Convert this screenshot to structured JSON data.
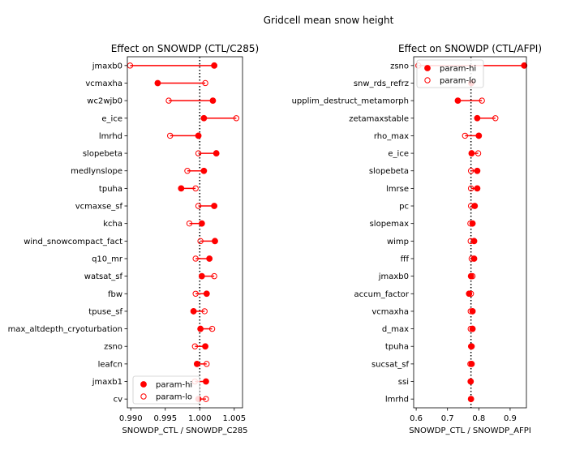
{
  "figure_title": "Gridcell mean snow height",
  "colors": {
    "marker": "#ff0000",
    "line": "#ff0000",
    "reference": "#000000",
    "axes": "#000000"
  },
  "chart_data": [
    {
      "type": "scatter",
      "title": "Effect on SNOWDP (CTL/C285)",
      "xlabel": "SNOWDP_CTL / SNOWDP_C285",
      "ylabel": "",
      "xlim": [
        0.9895,
        1.0062
      ],
      "xticks": [
        0.99,
        0.995,
        1.0,
        1.005
      ],
      "xtick_labels": [
        "0.990",
        "0.995",
        "1.000",
        "1.005"
      ],
      "reference_x": 1.0,
      "grid": false,
      "legend_position": "bottom-left",
      "legend": [
        {
          "label": "param-hi",
          "marker": "filled-circle"
        },
        {
          "label": "param-lo",
          "marker": "open-circle"
        }
      ],
      "categories": [
        "jmaxb0",
        "vcmaxha",
        "wc2wjb0",
        "e_ice",
        "lmrhd",
        "slopebeta",
        "medlynslope",
        "tpuha",
        "vcmaxse_sf",
        "kcha",
        "wind_snowcompact_fact",
        "q10_mr",
        "watsat_sf",
        "fbw",
        "tpuse_sf",
        "max_altdepth_cryoturbation",
        "zsno",
        "leafcn",
        "jmaxb1",
        "cv"
      ],
      "series": [
        {
          "name": "param-hi",
          "values": [
            1.0021,
            0.9939,
            1.0019,
            1.0006,
            0.9998,
            1.0024,
            1.0006,
            0.9973,
            1.0021,
            1.0003,
            1.0022,
            1.0014,
            1.0003,
            1.001,
            0.9991,
            1.0001,
            1.0008,
            0.9996,
            1.0009,
            0.9998
          ]
        },
        {
          "name": "param-lo",
          "values": [
            0.9899,
            1.0008,
            0.9955,
            1.0053,
            0.9957,
            0.9998,
            0.9982,
            0.9994,
            0.9998,
            0.9985,
            1.0001,
            0.9994,
            1.0021,
            0.9994,
            1.0007,
            1.0018,
            0.9993,
            1.001,
            0.9993,
            1.0009
          ]
        }
      ]
    },
    {
      "type": "scatter",
      "title": "Effect on SNOWDP (CTL/AFPI)",
      "xlabel": "SNOWDP_CTL / SNOWDP_AFPI",
      "ylabel": "",
      "xlim": [
        0.592,
        0.952
      ],
      "xticks": [
        0.6,
        0.7,
        0.8,
        0.9
      ],
      "xtick_labels": [
        "0.6",
        "0.7",
        "0.8",
        "0.9"
      ],
      "reference_x": 0.775,
      "grid": false,
      "legend_position": "top-left",
      "legend": [
        {
          "label": "param-hi",
          "marker": "filled-circle"
        },
        {
          "label": "param-lo",
          "marker": "open-circle"
        }
      ],
      "categories": [
        "zsno",
        "snw_rds_refrz",
        "upplim_destruct_metamorph",
        "zetamaxstable",
        "rho_max",
        "e_ice",
        "slopebeta",
        "lmrse",
        "pc",
        "slopemax",
        "wimp",
        "fff",
        "jmaxb0",
        "accum_factor",
        "vcmaxha",
        "d_max",
        "tpuha",
        "sucsat_sf",
        "ssi",
        "lmrhd"
      ],
      "series": [
        {
          "name": "param-hi",
          "values": [
            0.945,
            0.776,
            0.733,
            0.795,
            0.8,
            0.777,
            0.795,
            0.795,
            0.787,
            0.78,
            0.785,
            0.785,
            0.775,
            0.769,
            0.78,
            0.78,
            0.777,
            0.777,
            0.774,
            0.775
          ]
        },
        {
          "name": "param-lo",
          "values": [
            0.607,
            0.776,
            0.81,
            0.853,
            0.756,
            0.798,
            0.775,
            0.775,
            0.775,
            0.773,
            0.774,
            0.777,
            0.78,
            0.775,
            0.774,
            0.774,
            0.775,
            0.773,
            0.774,
            0.775
          ]
        }
      ]
    }
  ]
}
